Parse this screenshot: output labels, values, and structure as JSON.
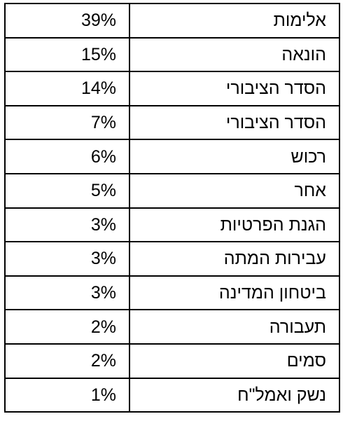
{
  "rows": [
    {
      "percent": "39%",
      "category": "אלימות"
    },
    {
      "percent": "15%",
      "category": "הונאה"
    },
    {
      "percent": "14%",
      "category": "הסדר הציבורי"
    },
    {
      "percent": "7%",
      "category": "הסדר הציבורי"
    },
    {
      "percent": "6%",
      "category": "רכוש"
    },
    {
      "percent": "5%",
      "category": "אחר"
    },
    {
      "percent": "3%",
      "category": "הגנת הפרטיות"
    },
    {
      "percent": "3%",
      "category": "עבירות המתה"
    },
    {
      "percent": "3%",
      "category": "ביטחון המדינה"
    },
    {
      "percent": "2%",
      "category": "תעבורה"
    },
    {
      "percent": "2%",
      "category": "סמים"
    },
    {
      "percent": "1%",
      "category": "נשק ואמל\"ח"
    }
  ]
}
